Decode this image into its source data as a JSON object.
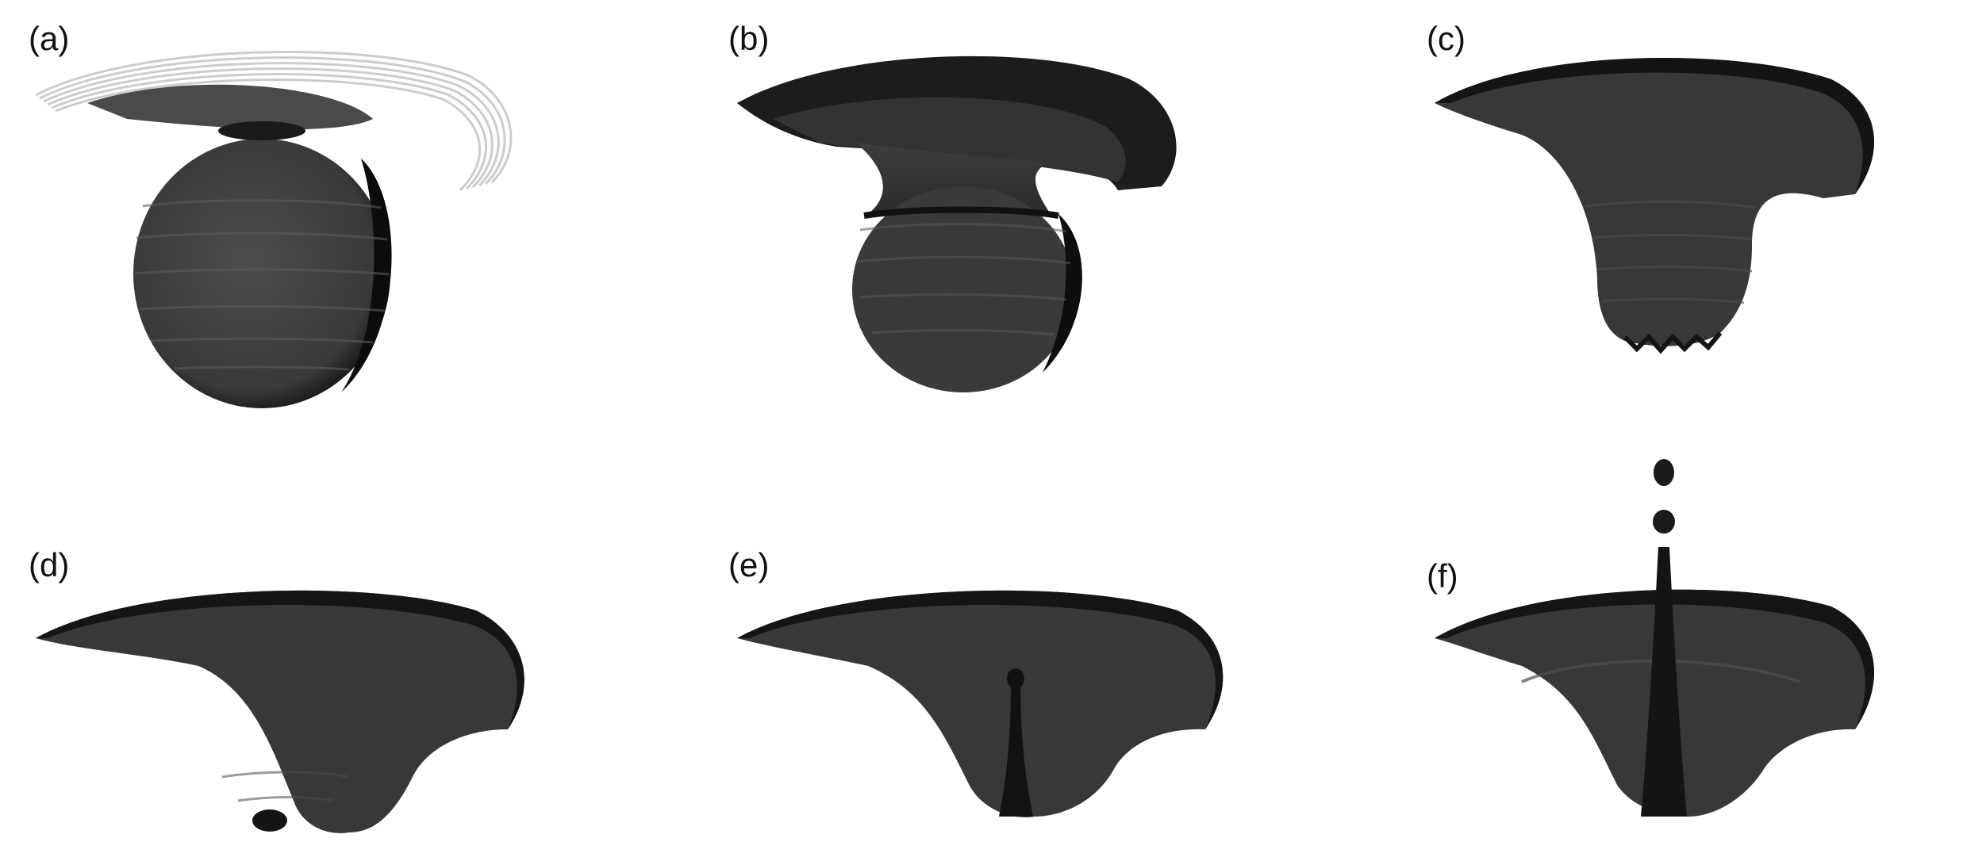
{
  "figure": {
    "panels": [
      {
        "id": "a",
        "label": "(a)"
      },
      {
        "id": "b",
        "label": "(b)"
      },
      {
        "id": "c",
        "label": "(c)"
      },
      {
        "id": "d",
        "label": "(d)"
      },
      {
        "id": "e",
        "label": "(e)"
      },
      {
        "id": "f",
        "label": "(f)"
      }
    ]
  },
  "colors": {
    "surface_dark": "#1a1a1a",
    "surface_mid": "#3a3a3a",
    "surface_light": "#555555",
    "ghost_rings": "#bdbdbd",
    "background": "#ffffff"
  }
}
